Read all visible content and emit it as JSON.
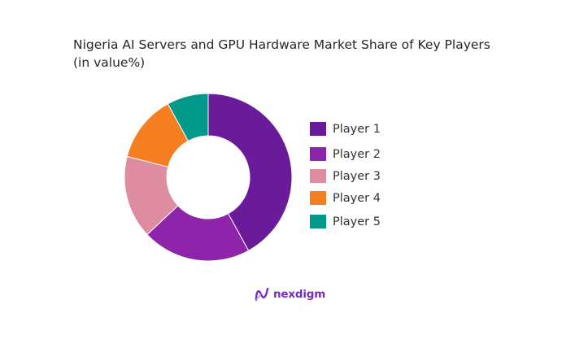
{
  "chart_data": {
    "type": "pie",
    "variant": "donut",
    "title_lines": [
      "Nigeria AI Servers and GPU Hardware Market Share of Key Players",
      "(in value%)"
    ],
    "categories": [
      "Player 1",
      "Player 2",
      "Player 3",
      "Player 4",
      "Player 5"
    ],
    "values": [
      42,
      21,
      16,
      13,
      8
    ],
    "colors": [
      "#6a1b9a",
      "#8e24aa",
      "#de8ca0",
      "#f57f20",
      "#00998a"
    ],
    "legend_position": "right"
  },
  "branding": {
    "logo_icon": "nexdigm-logo-icon",
    "name": "nexdigm",
    "color": "#7b2cbf"
  }
}
